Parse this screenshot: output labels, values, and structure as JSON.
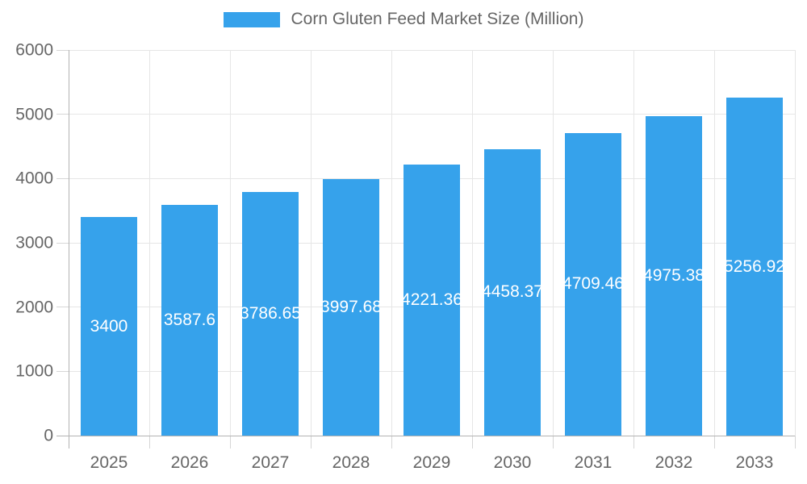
{
  "colors": {
    "bar": "#36A2EB",
    "bar_label": "#ffffff",
    "axis_text": "#666666",
    "grid_line": "#e6e6e6",
    "tick": "#d6d6d6",
    "axis_line": "#b3b3b3",
    "background": "#ffffff"
  },
  "legend": {
    "label": "Corn Gluten Feed Market Size (Million)"
  },
  "chart_data": {
    "type": "bar",
    "title": "Corn Gluten Feed Market Size (Million)",
    "series_name": "Corn Gluten Feed Market Size (Million)",
    "categories": [
      "2025",
      "2026",
      "2027",
      "2028",
      "2029",
      "2030",
      "2031",
      "2032",
      "2033"
    ],
    "values": [
      3400,
      3587.6,
      3786.65,
      3997.68,
      4221.36,
      4458.37,
      4709.46,
      4975.38,
      5256.92
    ],
    "value_labels": [
      "3400",
      "3587.6",
      "3786.65",
      "3997.68",
      "4221.36",
      "4458.37",
      "4709.46",
      "4975.38",
      "5256.92"
    ],
    "xlabel": "",
    "ylabel": "",
    "ylim": [
      0,
      6000
    ],
    "yticks": [
      0,
      1000,
      2000,
      3000,
      4000,
      5000,
      6000
    ],
    "grid": true,
    "legend_position": "top-center",
    "value_label_position": "inside-center",
    "value_label_color": "#ffffff",
    "bar_color": "#36A2EB"
  }
}
